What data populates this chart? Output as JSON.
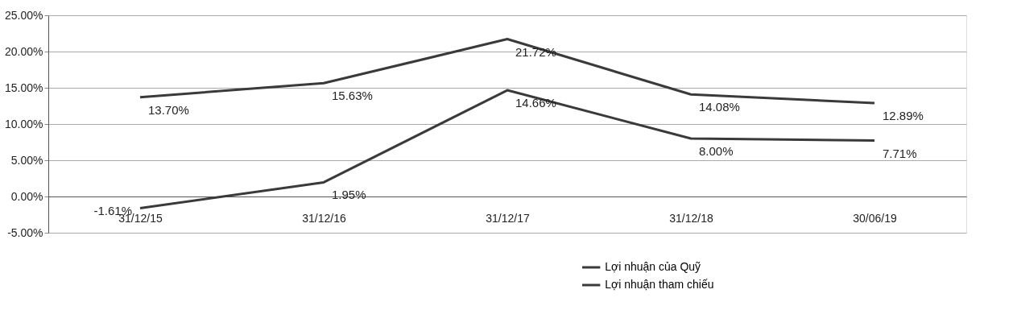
{
  "chart_data": {
    "type": "line",
    "categories": [
      "31/12/15",
      "31/12/16",
      "31/12/17",
      "31/12/18",
      "30/06/19"
    ],
    "series": [
      {
        "name": "Lợi nhuận của Quỹ",
        "color": "#3a3a3a",
        "values": [
          13.7,
          15.63,
          21.72,
          14.08,
          12.89
        ],
        "value_labels": [
          "13.70%",
          "15.63%",
          "21.72%",
          "14.08%",
          "12.89%"
        ]
      },
      {
        "name": "Lợi nhuận tham chiếu",
        "color": "#3a3a3a",
        "values": [
          -1.61,
          1.95,
          14.66,
          8.0,
          7.71
        ],
        "value_labels": [
          "-1.61%",
          "1.95%",
          "14.66%",
          "8.00%",
          "7.71%"
        ]
      }
    ],
    "ylim": [
      -5,
      25
    ],
    "yticks": [
      {
        "value": -5,
        "label": "-5.00%"
      },
      {
        "value": 0,
        "label": "0.00%"
      },
      {
        "value": 5,
        "label": "5.00%"
      },
      {
        "value": 10,
        "label": "10.00%"
      },
      {
        "value": 15,
        "label": "15.00%"
      },
      {
        "value": 20,
        "label": "20.00%"
      },
      {
        "value": 25,
        "label": "25.00%"
      }
    ],
    "grid": "y",
    "legend": "bottom",
    "marker": "none",
    "line_style": "solid"
  }
}
